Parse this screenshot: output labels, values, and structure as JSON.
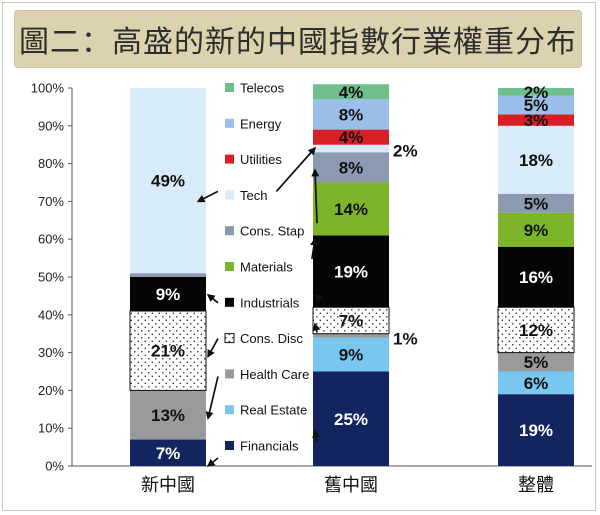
{
  "title": "圖二：高盛的新的中國指數行業權重分布",
  "chart_data": {
    "type": "bar",
    "stacked": true,
    "title": "圖二：高盛的新的中國指數行業權重分布",
    "categories": [
      "新中國",
      "舊中國",
      "整體"
    ],
    "ylim": [
      0,
      100
    ],
    "yticks": [
      "0%",
      "10%",
      "20%",
      "30%",
      "40%",
      "50%",
      "60%",
      "70%",
      "80%",
      "90%",
      "100%"
    ],
    "legend_position": "center",
    "series": [
      {
        "name": "Financials",
        "color": "#13255e",
        "label_color": "#ffffff",
        "values": [
          7,
          25,
          19
        ],
        "labels": [
          "7%",
          "25%",
          "19%"
        ]
      },
      {
        "name": "Real Estate",
        "color": "#79c6ee",
        "label_color": "#111111",
        "values": [
          0,
          9,
          6
        ],
        "labels": [
          "",
          "9%",
          "6%"
        ]
      },
      {
        "name": "Health Care",
        "color": "#9a9a9a",
        "label_color": "#111111",
        "values": [
          13,
          1,
          5
        ],
        "labels": [
          "13%",
          "1%",
          "5%"
        ]
      },
      {
        "name": "Cons. Disc",
        "color": "#ffffff",
        "label_color": "#111111",
        "values": [
          21,
          7,
          12
        ],
        "labels": [
          "21%",
          "7%",
          "12%"
        ],
        "pattern": "dots"
      },
      {
        "name": "Industrials",
        "color": "#050505",
        "label_color": "#ffffff",
        "values": [
          9,
          19,
          16
        ],
        "labels": [
          "9%",
          "19%",
          "16%"
        ]
      },
      {
        "name": "Materials",
        "color": "#7db52a",
        "label_color": "#111111",
        "values": [
          0,
          14,
          9
        ],
        "labels": [
          "",
          "14%",
          "9%"
        ]
      },
      {
        "name": "Cons. Stap",
        "color": "#8b9ab0",
        "label_color": "#111111",
        "values": [
          1,
          8,
          5
        ],
        "labels": [
          "",
          "8%",
          "5%"
        ]
      },
      {
        "name": "Tech",
        "color": "#d7ebf8",
        "label_color": "#111111",
        "values": [
          49,
          2,
          18
        ],
        "labels": [
          "49%",
          "2%",
          "18%"
        ]
      },
      {
        "name": "Utilities",
        "color": "#d91f26",
        "label_color": "#111111",
        "values": [
          0,
          4,
          3
        ],
        "labels": [
          "",
          "4%",
          "3%"
        ]
      },
      {
        "name": "Energy",
        "color": "#9bbfe8",
        "label_color": "#111111",
        "values": [
          0,
          8,
          5
        ],
        "labels": [
          "",
          "8%",
          "5%"
        ]
      },
      {
        "name": "Telecos",
        "color": "#6fbf8c",
        "label_color": "#111111",
        "values": [
          0,
          4,
          2
        ],
        "labels": [
          "",
          "4%",
          "2%"
        ]
      }
    ],
    "legend_order": [
      "Telecos",
      "Energy",
      "Utilities",
      "Tech",
      "Cons. Stap",
      "Materials",
      "Industrials",
      "Cons. Disc",
      "Health Care",
      "Real Estate",
      "Financials"
    ],
    "grid": false
  }
}
